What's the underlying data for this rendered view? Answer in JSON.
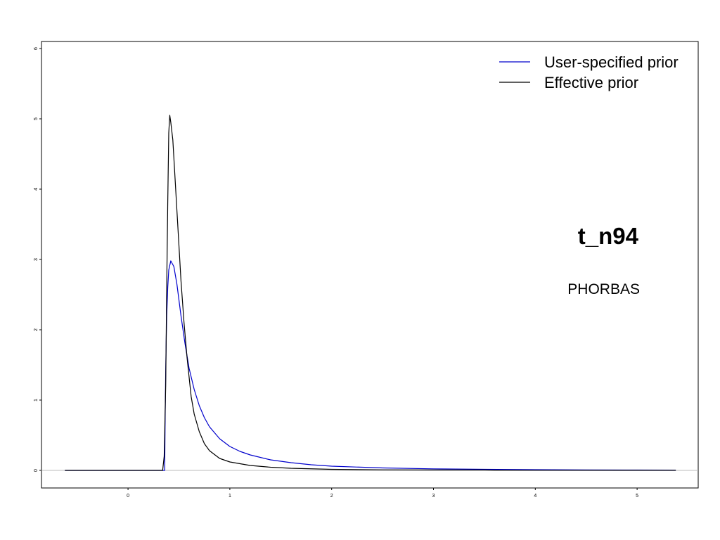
{
  "chart_data": {
    "type": "line",
    "xlim": [
      -0.85,
      5.6
    ],
    "ylim": [
      -0.25,
      6.1
    ],
    "x_ticks": [
      0,
      1,
      2,
      3,
      4,
      5
    ],
    "y_ticks": [
      0,
      1,
      2,
      3,
      4,
      5,
      6
    ],
    "x_tick_labels": [
      "0",
      "1",
      "2",
      "3",
      "4",
      "5"
    ],
    "y_tick_labels": [
      "0",
      "1",
      "2",
      "3",
      "4",
      "5",
      "6"
    ],
    "grid": false,
    "legend_position": "top-right",
    "annotations": {
      "node": "t_n94",
      "taxon": "PHORBAS"
    },
    "colors": {
      "user_prior": "#0000cc",
      "effective_prior": "#000000",
      "baseline": "#bbbbbb"
    },
    "series": [
      {
        "name": "User-specified prior",
        "color": "#0000cc",
        "x": [
          -0.62,
          0.3,
          0.36,
          0.365,
          0.37,
          0.375,
          0.38,
          0.39,
          0.4,
          0.42,
          0.45,
          0.48,
          0.52,
          0.56,
          0.6,
          0.65,
          0.7,
          0.75,
          0.8,
          0.9,
          1.0,
          1.1,
          1.2,
          1.4,
          1.6,
          1.8,
          2.0,
          2.5,
          3.0,
          3.5,
          4.0,
          4.5,
          5.0,
          5.38
        ],
        "y": [
          0,
          0,
          0,
          0.8,
          1.4,
          1.85,
          2.2,
          2.6,
          2.85,
          2.98,
          2.9,
          2.65,
          2.2,
          1.8,
          1.45,
          1.15,
          0.92,
          0.75,
          0.62,
          0.45,
          0.34,
          0.27,
          0.22,
          0.15,
          0.11,
          0.08,
          0.06,
          0.035,
          0.022,
          0.015,
          0.01,
          0.007,
          0.005,
          0.004
        ]
      },
      {
        "name": "Effective prior",
        "color": "#000000",
        "x": [
          -0.62,
          0.3,
          0.34,
          0.355,
          0.37,
          0.38,
          0.39,
          0.4,
          0.41,
          0.42,
          0.44,
          0.46,
          0.48,
          0.5,
          0.52,
          0.55,
          0.58,
          0.62,
          0.65,
          0.7,
          0.75,
          0.8,
          0.9,
          1.0,
          1.2,
          1.4,
          1.6,
          2.0,
          2.5,
          3.0,
          3.5,
          3.6,
          4.0,
          5.0,
          5.38
        ],
        "y": [
          0,
          0,
          0,
          0.2,
          1.2,
          2.6,
          3.8,
          4.8,
          5.05,
          4.95,
          4.7,
          4.2,
          3.7,
          3.2,
          2.7,
          2.1,
          1.6,
          1.05,
          0.8,
          0.55,
          0.38,
          0.28,
          0.17,
          0.12,
          0.07,
          0.045,
          0.03,
          0.015,
          0.008,
          0.006,
          0.006,
          0.004,
          0.002,
          0.001,
          0.001
        ]
      }
    ]
  }
}
